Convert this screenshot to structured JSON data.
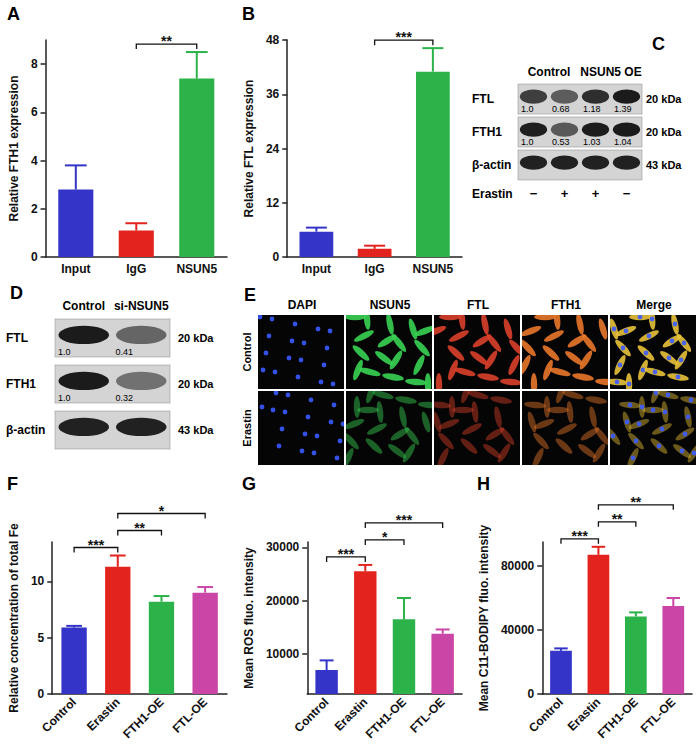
{
  "chart_data": [
    {
      "type": "bar",
      "title": "A",
      "ylabel": "Relative FTH1 expression",
      "categories": [
        "Input",
        "IgG",
        "NSUN5"
      ],
      "values": [
        2.8,
        1.1,
        7.4
      ],
      "errors": [
        1.0,
        0.3,
        1.1
      ],
      "colors": [
        "#3434c8",
        "#e3241e",
        "#2bb34a"
      ],
      "ylim": [
        0,
        9
      ],
      "yticks": [
        0,
        2,
        4,
        6,
        8
      ],
      "grid": false,
      "annotations": [
        {
          "from": "IgG",
          "to": "NSUN5",
          "text": "**"
        }
      ]
    },
    {
      "type": "bar",
      "title": "B",
      "ylabel": "Relative FTL expression",
      "categories": [
        "Input",
        "IgG",
        "NSUN5"
      ],
      "values": [
        5.6,
        1.8,
        41
      ],
      "errors": [
        0.9,
        0.7,
        5.2
      ],
      "colors": [
        "#3434c8",
        "#e3241e",
        "#2bb34a"
      ],
      "ylim": [
        0,
        48
      ],
      "yticks": [
        0,
        12,
        24,
        36,
        48
      ],
      "grid": false,
      "annotations": [
        {
          "from": "IgG",
          "to": "NSUN5",
          "text": "***"
        }
      ]
    },
    {
      "type": "bar",
      "title": "F",
      "ylabel": "Relative concentration of total Fe",
      "categories": [
        "Control",
        "Erastin",
        "FTH1-OE",
        "FTL-OE"
      ],
      "values": [
        5.9,
        11.3,
        8.2,
        9.0
      ],
      "errors": [
        0.15,
        1.0,
        0.5,
        0.5
      ],
      "colors": [
        "#3434c8",
        "#e3241e",
        "#2bb34a",
        "#c946a6"
      ],
      "ylim": [
        0,
        13.5
      ],
      "yticks": [
        0,
        5,
        10
      ],
      "grid": false,
      "annotations": [
        {
          "from": "Control",
          "to": "Erastin",
          "text": "***"
        },
        {
          "from": "Erastin",
          "to": "FTH1-OE",
          "text": "**"
        },
        {
          "from": "Erastin",
          "to": "FTL-OE",
          "text": "*"
        }
      ]
    },
    {
      "type": "bar",
      "title": "G",
      "ylabel": "Mean ROS fluo. intensity",
      "categories": [
        "Control",
        "Erastin",
        "FTH1-OE",
        "FTL-OE"
      ],
      "values": [
        7000,
        25500,
        16500,
        13800
      ],
      "errors": [
        1800,
        1200,
        4000,
        800
      ],
      "colors": [
        "#3434c8",
        "#e3241e",
        "#2bb34a",
        "#c946a6"
      ],
      "ylim": [
        2500,
        31000
      ],
      "yticks": [
        10000,
        20000,
        30000
      ],
      "grid": false,
      "annotations": [
        {
          "from": "Control",
          "to": "Erastin",
          "text": "***"
        },
        {
          "from": "Erastin",
          "to": "FTH1-OE",
          "text": "*"
        },
        {
          "from": "Erastin",
          "to": "FTL-OE",
          "text": "***"
        }
      ]
    },
    {
      "type": "bar",
      "title": "H",
      "ylabel": "Mean C11-BODIPY fluo. intensity",
      "categories": [
        "Control",
        "Erastin",
        "FTH1-OE",
        "FTL-OE"
      ],
      "values": [
        27000,
        87000,
        48500,
        55000
      ],
      "errors": [
        1500,
        5000,
        2500,
        5000
      ],
      "colors": [
        "#3434c8",
        "#e3241e",
        "#2bb34a",
        "#c946a6"
      ],
      "ylim": [
        0,
        95000
      ],
      "yticks": [
        0,
        40000,
        80000
      ],
      "grid": false,
      "annotations": [
        {
          "from": "Control",
          "to": "Erastin",
          "text": "***"
        },
        {
          "from": "Erastin",
          "to": "FTH1-OE",
          "text": "**"
        },
        {
          "from": "Erastin",
          "to": "FTL-OE",
          "text": "**"
        }
      ]
    }
  ],
  "blots": [
    {
      "panel": "C",
      "groups": [
        {
          "label": "Control",
          "lanes": 2
        },
        {
          "label": "NSUN5 OE",
          "lanes": 2
        }
      ],
      "rows": [
        {
          "protein": "FTL",
          "size": "20 kDa",
          "values": [
            "1.0",
            "0.68",
            "1.18",
            "1.39"
          ]
        },
        {
          "protein": "FTH1",
          "size": "20 kDa",
          "values": [
            "1.0",
            "0.53",
            "1.03",
            "1.04"
          ]
        },
        {
          "protein": "β-actin",
          "size": "43 kDa"
        }
      ],
      "treatment": {
        "label": "Erastin",
        "marks": [
          "−",
          "+",
          "+",
          "−"
        ]
      }
    },
    {
      "panel": "D",
      "groups": [
        {
          "label": "Control",
          "lanes": 1
        },
        {
          "label": "si-NSUN5",
          "lanes": 1
        }
      ],
      "rows": [
        {
          "protein": "FTL",
          "size": "20 kDa",
          "values": [
            "1.0",
            "0.41"
          ]
        },
        {
          "protein": "FTH1",
          "size": "20 kDa",
          "values": [
            "1.0",
            "0.32"
          ]
        },
        {
          "protein": "β-actin",
          "size": "43 kDa"
        }
      ]
    }
  ],
  "images": {
    "panel": "E",
    "columns": [
      "DAPI",
      "NSUN5",
      "FTL",
      "FTH1",
      "Merge"
    ],
    "rows": [
      "Control",
      "Erastin"
    ]
  }
}
